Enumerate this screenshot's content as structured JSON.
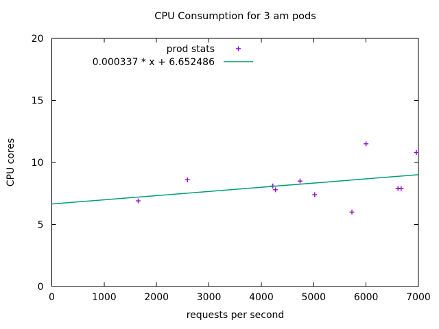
{
  "title": "CPU Consumption for 3 am pods",
  "axes": {
    "x": {
      "label": "requests per second",
      "min": 0,
      "max": 7000,
      "ticks": [
        0,
        1000,
        2000,
        3000,
        4000,
        5000,
        6000,
        7000
      ],
      "tick_labels": [
        "0",
        "1000",
        "2000",
        "3000",
        "4000",
        "5000",
        "6000",
        "7000"
      ]
    },
    "y": {
      "label": "CPU cores",
      "min": 0,
      "max": 20,
      "ticks": [
        0,
        5,
        10,
        15,
        20
      ],
      "tick_labels": [
        "0",
        "5",
        "10",
        "15",
        "20"
      ]
    }
  },
  "legend": {
    "position": "inside-top-center",
    "entries": [
      {
        "label": "prod stats",
        "sample": "point-plus",
        "color": "#9400d3"
      },
      {
        "label": "0.000337 * x + 6.652486",
        "sample": "line",
        "color": "#009e73"
      }
    ]
  },
  "colors": {
    "points": "#9400d3",
    "fit_line": "#009e73",
    "frame": "#000000",
    "text": "#000000",
    "background": "#ffffff"
  },
  "chart_data": {
    "type": "scatter",
    "title": "CPU Consumption for 3 am pods",
    "xlabel": "requests per second",
    "ylabel": "CPU cores",
    "xlim": [
      0,
      7000
    ],
    "ylim": [
      0,
      20
    ],
    "grid": false,
    "legend_position": "inside top center",
    "series": [
      {
        "name": "prod stats",
        "type": "scatter",
        "marker": "plus",
        "color": "#9400d3",
        "points": [
          [
            1650,
            6.9
          ],
          [
            2590,
            8.6
          ],
          [
            4220,
            8.1
          ],
          [
            4270,
            7.8
          ],
          [
            4740,
            8.5
          ],
          [
            5020,
            7.4
          ],
          [
            5730,
            6.0
          ],
          [
            6000,
            11.5
          ],
          [
            6610,
            7.9
          ],
          [
            6670,
            7.9
          ],
          [
            6960,
            10.8
          ]
        ]
      },
      {
        "name": "0.000337 * x + 6.652486",
        "type": "line",
        "color": "#009e73",
        "fit": {
          "slope": 0.000337,
          "intercept": 6.652486
        }
      }
    ]
  }
}
